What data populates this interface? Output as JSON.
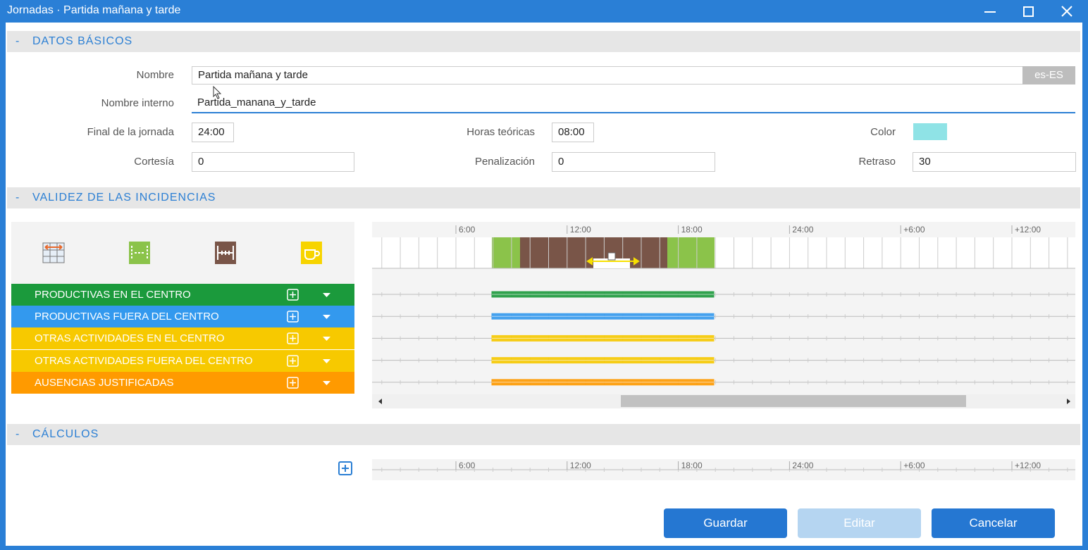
{
  "window": {
    "title": "Jornadas · Partida mañana y tarde"
  },
  "sections": [
    {
      "toggle": "-",
      "title": "DATOS BÁSICOS"
    },
    {
      "toggle": "-",
      "title": "VALIDEZ DE LAS INCIDENCIAS"
    },
    {
      "toggle": "-",
      "title": "CÁLCULOS"
    }
  ],
  "basic": {
    "name": {
      "label": "Nombre",
      "value": "Partida mañana y tarde",
      "locale": "es-ES"
    },
    "internal_name": {
      "label": "Nombre interno",
      "value": "Partida_manana_y_tarde"
    },
    "day_end": {
      "label": "Final de la jornada",
      "value": "24:00"
    },
    "theoretical_hours": {
      "label": "Horas teóricas",
      "value": "08:00"
    },
    "color": {
      "label": "Color",
      "swatch": "#8fe3e6"
    },
    "courtesy": {
      "label": "Cortesía",
      "value": "0"
    },
    "penalty": {
      "label": "Penalización",
      "value": "0"
    },
    "delay": {
      "label": "Retraso",
      "value": "30"
    }
  },
  "timeline": {
    "ticks": [
      "6:00",
      "12:00",
      "18:00",
      "24:00",
      "+6:00",
      "+12:00"
    ]
  },
  "incidences": [
    {
      "name": "PRODUCTIVAS EN EL CENTRO",
      "color": "#1b9a3c"
    },
    {
      "name": "PRODUCTIVAS FUERA DEL CENTRO",
      "color": "#3399ee"
    },
    {
      "name": "OTRAS ACTIVIDADES EN EL CENTRO",
      "color": "#f7c900"
    },
    {
      "name": "OTRAS ACTIVIDADES FUERA DEL CENTRO",
      "color": "#f7c900"
    },
    {
      "name": "AUSENCIAS JUSTIFICADAS",
      "color": "#ff9a00"
    }
  ],
  "buttons": {
    "save": "Guardar",
    "edit": "Editar",
    "cancel": "Cancelar"
  }
}
